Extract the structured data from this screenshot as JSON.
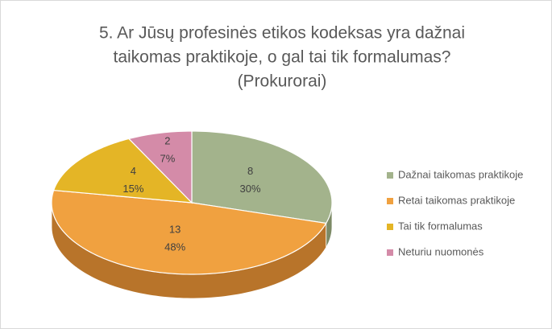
{
  "chart_data": {
    "type": "pie",
    "title": [
      "5. Ar Jūsų profesinės etikos kodeksas yra dažnai",
      "taikomas praktikoje, o gal tai tik formalumas?",
      "(Prokurorai)"
    ],
    "categories": [
      "Dažnai taikomas praktikoje",
      "Retai taikomas praktikoje",
      "Tai tik formalumas",
      "Neturiu nuomonės"
    ],
    "values": [
      8,
      13,
      4,
      2
    ],
    "percent_labels": [
      "30%",
      "48%",
      "15%",
      "7%"
    ],
    "colors": [
      "#a3b38c",
      "#f0a140",
      "#e4b526",
      "#d48ba8"
    ],
    "side_colors": [
      "#7c8a66",
      "#b8742a",
      "#ad8716",
      "#a1607c"
    ],
    "legend": "right"
  }
}
